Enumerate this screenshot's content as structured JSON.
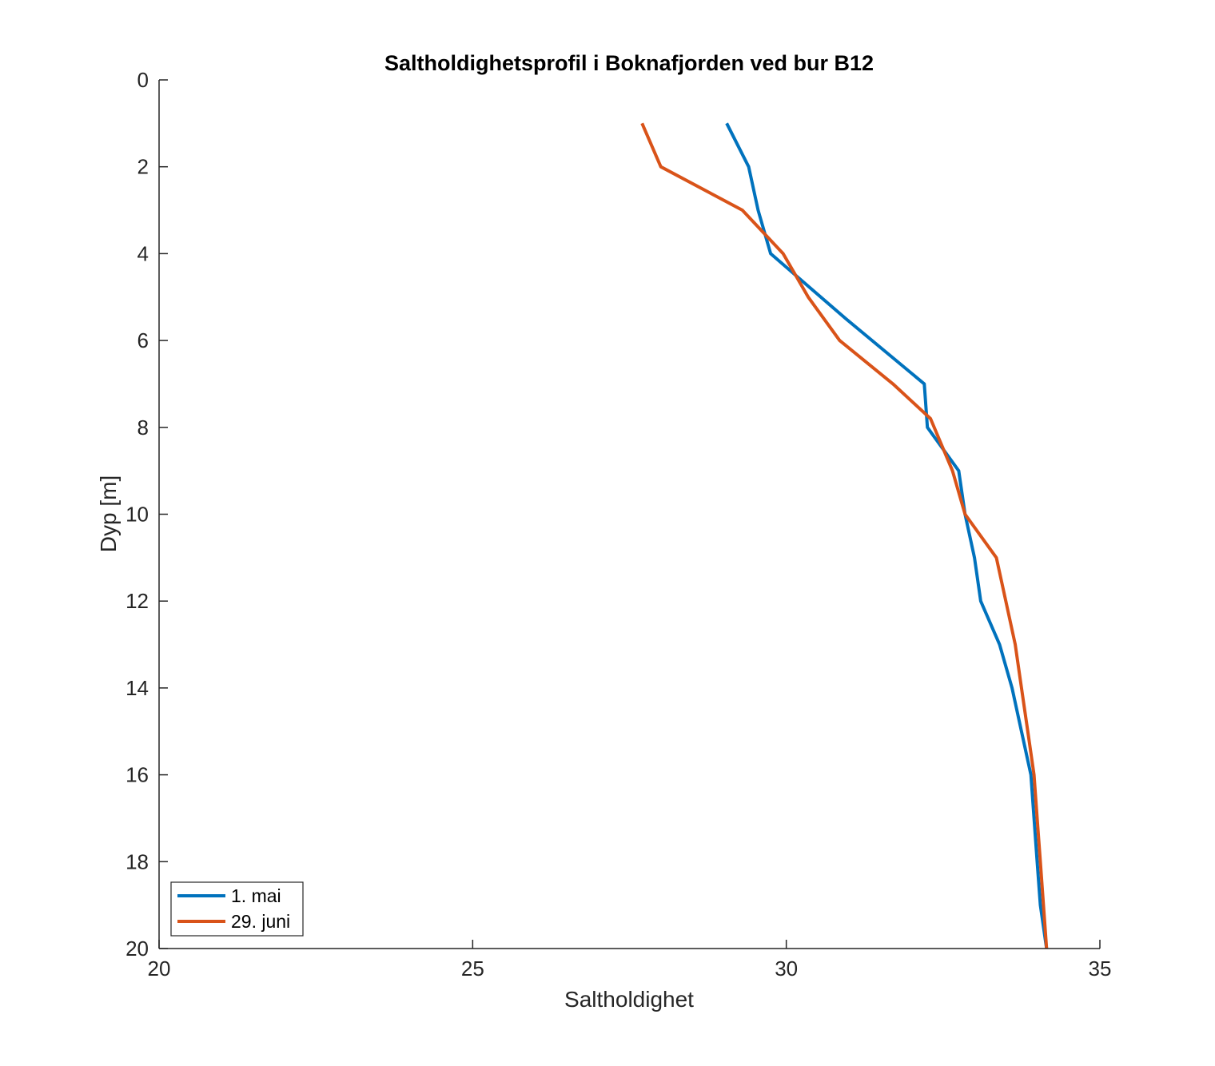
{
  "chart_data": {
    "type": "line",
    "title": "Saltholdighetsprofil i Boknafjorden ved bur B12",
    "xlabel": "Saltholdighet",
    "ylabel": "Dyp [m]",
    "xlim": [
      20,
      35
    ],
    "ylim": [
      0,
      20
    ],
    "y_reversed": true,
    "x_ticks": [
      20,
      25,
      30,
      35
    ],
    "y_ticks": [
      0,
      2,
      4,
      6,
      8,
      10,
      12,
      14,
      16,
      18,
      20
    ],
    "grid": false,
    "legend_position": "bottom-left",
    "series": [
      {
        "name": "1. mai",
        "color": "#0072BD",
        "points": [
          [
            29.05,
            1
          ],
          [
            29.4,
            2
          ],
          [
            29.55,
            3
          ],
          [
            29.75,
            4
          ],
          [
            30.95,
            5.5
          ],
          [
            32.2,
            7
          ],
          [
            32.25,
            8
          ],
          [
            32.75,
            9
          ],
          [
            32.85,
            10
          ],
          [
            33.0,
            11
          ],
          [
            33.1,
            12
          ],
          [
            33.4,
            13
          ],
          [
            33.6,
            14
          ],
          [
            33.75,
            15
          ],
          [
            33.9,
            16
          ],
          [
            33.95,
            17
          ],
          [
            34.0,
            18
          ],
          [
            34.05,
            19
          ],
          [
            34.15,
            20
          ]
        ]
      },
      {
        "name": "29. juni",
        "color": "#D95319",
        "points": [
          [
            27.7,
            1
          ],
          [
            28.0,
            2
          ],
          [
            29.3,
            3
          ],
          [
            29.95,
            4
          ],
          [
            30.35,
            5
          ],
          [
            30.85,
            6
          ],
          [
            31.7,
            7
          ],
          [
            32.3,
            7.8
          ],
          [
            32.65,
            9
          ],
          [
            32.85,
            10
          ],
          [
            33.35,
            11
          ],
          [
            33.5,
            12
          ],
          [
            33.65,
            13
          ],
          [
            33.75,
            14
          ],
          [
            33.85,
            15
          ],
          [
            33.95,
            16
          ],
          [
            34.0,
            17
          ],
          [
            34.05,
            18
          ],
          [
            34.1,
            19
          ],
          [
            34.15,
            20
          ]
        ]
      }
    ]
  }
}
